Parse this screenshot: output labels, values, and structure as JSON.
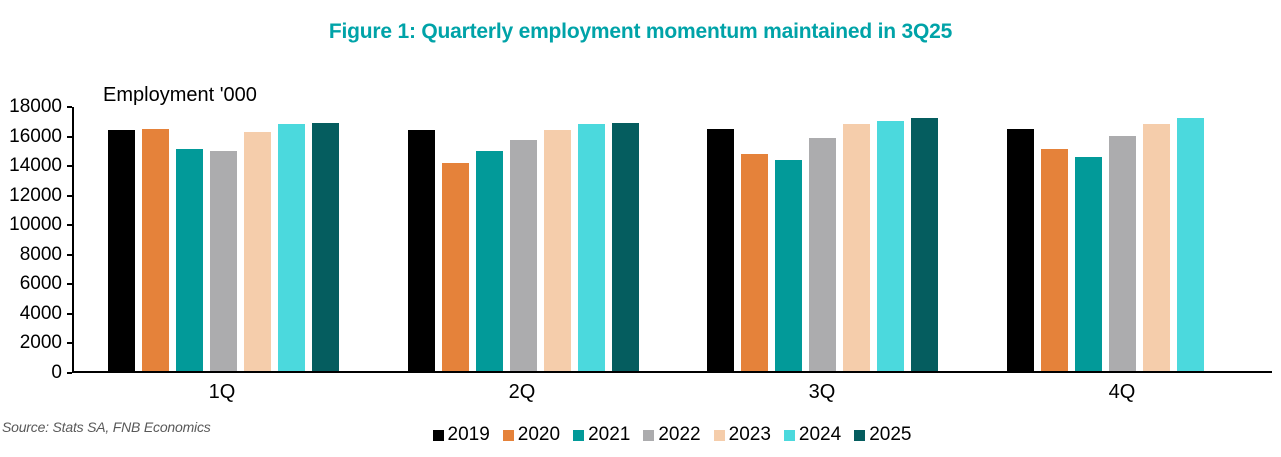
{
  "header": {
    "title": "Figure 1: Quarterly employment momentum maintained in 3Q25",
    "title_color": "#00A3A8"
  },
  "footer": {
    "source": "Source: Stats SA, FNB Economics",
    "source_color": "#595959"
  },
  "chart_data": {
    "type": "bar",
    "title": "Figure 1: Quarterly employment momentum maintained in 3Q25",
    "ylabel": "Employment '000",
    "xlabel": "",
    "categories": [
      "1Q",
      "2Q",
      "3Q",
      "4Q"
    ],
    "series": [
      {
        "name": "2019",
        "color": "#000000",
        "values": [
          16300,
          16300,
          16400,
          16400
        ]
      },
      {
        "name": "2020",
        "color": "#E5823A",
        "values": [
          16400,
          14100,
          14700,
          15000
        ]
      },
      {
        "name": "2021",
        "color": "#029A99",
        "values": [
          15000,
          14900,
          14300,
          14500
        ]
      },
      {
        "name": "2022",
        "color": "#ACACAE",
        "values": [
          14900,
          15600,
          15800,
          15900
        ]
      },
      {
        "name": "2023",
        "color": "#F5CDAB",
        "values": [
          16200,
          16300,
          16700,
          16700
        ]
      },
      {
        "name": "2024",
        "color": "#4BD9DD",
        "values": [
          16700,
          16700,
          16900,
          17100
        ]
      },
      {
        "name": "2025",
        "color": "#055D5F",
        "values": [
          16800,
          16800,
          17100,
          null
        ]
      }
    ],
    "ylim": [
      0,
      18000
    ],
    "ytick_step": 2000,
    "grid": false,
    "legend_position": "bottom",
    "axis_color": "#000000"
  }
}
